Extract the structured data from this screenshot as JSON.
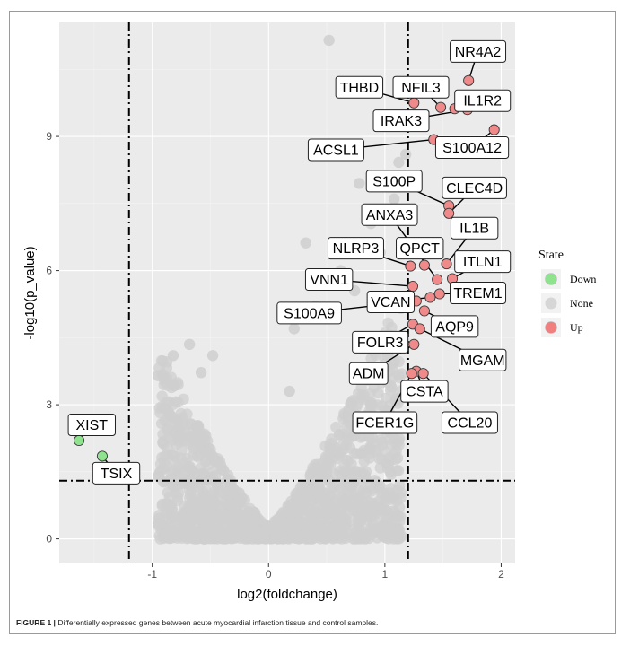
{
  "chart_data": {
    "type": "scatter",
    "title": "",
    "xlabel": "log2(foldchange)",
    "ylabel": "-log10(p_value)",
    "xlim": [
      -1.8,
      2.12
    ],
    "ylim": [
      -0.55,
      11.55
    ],
    "x_ticks": [
      -1,
      0,
      1,
      2
    ],
    "y_ticks": [
      0,
      3,
      6,
      9
    ],
    "grid": true,
    "background": "#ebebeb",
    "thresholds": {
      "x": [
        -1.2,
        1.2
      ],
      "y": 1.3
    },
    "legend": {
      "title": "State",
      "position": "right",
      "entries": [
        {
          "label": "Down",
          "color": "#8fe38f"
        },
        {
          "label": "None",
          "color": "#d6d6d6"
        },
        {
          "label": "Up",
          "color": "#f08080"
        }
      ]
    },
    "point_colors": {
      "Down": "#8fe38f",
      "None": "#cfcfcf",
      "Up": "#f08a8a"
    },
    "labeled_points": [
      {
        "gene": "XIST",
        "x": -1.63,
        "y": 2.2,
        "state": "Down",
        "lx": -1.52,
        "ly": 2.55
      },
      {
        "gene": "TSIX",
        "x": -1.43,
        "y": 1.85,
        "state": "Down",
        "lx": -1.31,
        "ly": 1.47
      },
      {
        "gene": "NR4A2",
        "x": 1.72,
        "y": 10.25,
        "state": "Up",
        "lx": 1.8,
        "ly": 10.9
      },
      {
        "gene": "THBD",
        "x": 1.25,
        "y": 9.75,
        "state": "Up",
        "lx": 0.78,
        "ly": 10.1
      },
      {
        "gene": "NFIL3",
        "x": 1.48,
        "y": 9.65,
        "state": "Up",
        "lx": 1.31,
        "ly": 10.1
      },
      {
        "gene": "IL1R2",
        "x": 1.6,
        "y": 9.62,
        "state": "Up",
        "lx": 1.84,
        "ly": 9.8
      },
      {
        "gene": "IRAK3",
        "x": 1.71,
        "y": 9.6,
        "state": "Up",
        "lx": 1.14,
        "ly": 9.35
      },
      {
        "gene": "S100A12",
        "x": 1.94,
        "y": 9.15,
        "state": "Up",
        "lx": 1.75,
        "ly": 8.75
      },
      {
        "gene": "ACSL1",
        "x": 1.42,
        "y": 8.93,
        "state": "Up",
        "lx": 0.58,
        "ly": 8.7
      },
      {
        "gene": "S100P",
        "x": 1.55,
        "y": 7.45,
        "state": "Up",
        "lx": 1.08,
        "ly": 8.0
      },
      {
        "gene": "CLEC4D",
        "x": 1.55,
        "y": 7.28,
        "state": "Up",
        "lx": 1.77,
        "ly": 7.85
      },
      {
        "gene": "ANXA3",
        "x": 1.45,
        "y": 5.8,
        "state": "Up",
        "lx": 1.04,
        "ly": 7.25
      },
      {
        "gene": "IL1B",
        "x": 1.53,
        "y": 6.15,
        "state": "Up",
        "lx": 1.77,
        "ly": 6.95
      },
      {
        "gene": "NLRP3",
        "x": 1.22,
        "y": 6.1,
        "state": "Up",
        "lx": 0.75,
        "ly": 6.5
      },
      {
        "gene": "QPCT",
        "x": 1.34,
        "y": 6.12,
        "state": "Up",
        "lx": 1.3,
        "ly": 6.5
      },
      {
        "gene": "ITLN1",
        "x": 1.58,
        "y": 5.82,
        "state": "Up",
        "lx": 1.84,
        "ly": 6.2
      },
      {
        "gene": "VNN1",
        "x": 1.24,
        "y": 5.65,
        "state": "Up",
        "lx": 0.52,
        "ly": 5.8
      },
      {
        "gene": "TREM1",
        "x": 1.47,
        "y": 5.48,
        "state": "Up",
        "lx": 1.8,
        "ly": 5.5
      },
      {
        "gene": "VCAN",
        "x": 1.39,
        "y": 5.4,
        "state": "Up",
        "lx": 1.05,
        "ly": 5.3
      },
      {
        "gene": "S100A9",
        "x": 1.27,
        "y": 5.32,
        "state": "Up",
        "lx": 0.35,
        "ly": 5.05
      },
      {
        "gene": "AQP9",
        "x": 1.34,
        "y": 5.1,
        "state": "Up",
        "lx": 1.6,
        "ly": 4.75
      },
      {
        "gene": "FOLR3",
        "x": 1.24,
        "y": 4.8,
        "state": "Up",
        "lx": 0.96,
        "ly": 4.4
      },
      {
        "gene": "MGAM",
        "x": 1.3,
        "y": 4.7,
        "state": "Up",
        "lx": 1.84,
        "ly": 4.0
      },
      {
        "gene": "ADM",
        "x": 1.25,
        "y": 4.35,
        "state": "Up",
        "lx": 0.86,
        "ly": 3.7
      },
      {
        "gene": "CSTA",
        "x": 1.27,
        "y": 3.75,
        "state": "Up",
        "lx": 1.34,
        "ly": 3.3
      },
      {
        "gene": "FCER1G",
        "x": 1.23,
        "y": 3.7,
        "state": "Up",
        "lx": 1.0,
        "ly": 2.6
      },
      {
        "gene": "CCL20",
        "x": 1.33,
        "y": 3.7,
        "state": "Up",
        "lx": 1.73,
        "ly": 2.6
      }
    ],
    "background_points_note_free": true,
    "gray_outliers": [
      {
        "x": 0.52,
        "y": 11.15
      },
      {
        "x": 1.18,
        "y": 8.6
      },
      {
        "x": 1.12,
        "y": 8.42
      },
      {
        "x": 0.78,
        "y": 7.95
      },
      {
        "x": 1.08,
        "y": 7.6
      },
      {
        "x": 0.88,
        "y": 7.05
      },
      {
        "x": 0.32,
        "y": 6.62
      },
      {
        "x": 0.96,
        "y": 6.4
      },
      {
        "x": 0.62,
        "y": 6.0
      },
      {
        "x": 0.74,
        "y": 5.55
      },
      {
        "x": 0.4,
        "y": 5.2
      },
      {
        "x": -0.68,
        "y": 4.35
      },
      {
        "x": -0.48,
        "y": 4.1
      },
      {
        "x": -0.82,
        "y": 4.1
      },
      {
        "x": -0.58,
        "y": 3.72
      },
      {
        "x": -0.95,
        "y": 3.65
      },
      {
        "x": 0.22,
        "y": 4.7
      },
      {
        "x": 0.9,
        "y": 4.45
      },
      {
        "x": 0.18,
        "y": 3.3
      },
      {
        "x": 0.85,
        "y": 3.55
      }
    ]
  },
  "caption": {
    "label": "FIGURE 1 |",
    "text": " Differentially expressed genes between acute myocardial infarction tissue and control samples."
  }
}
